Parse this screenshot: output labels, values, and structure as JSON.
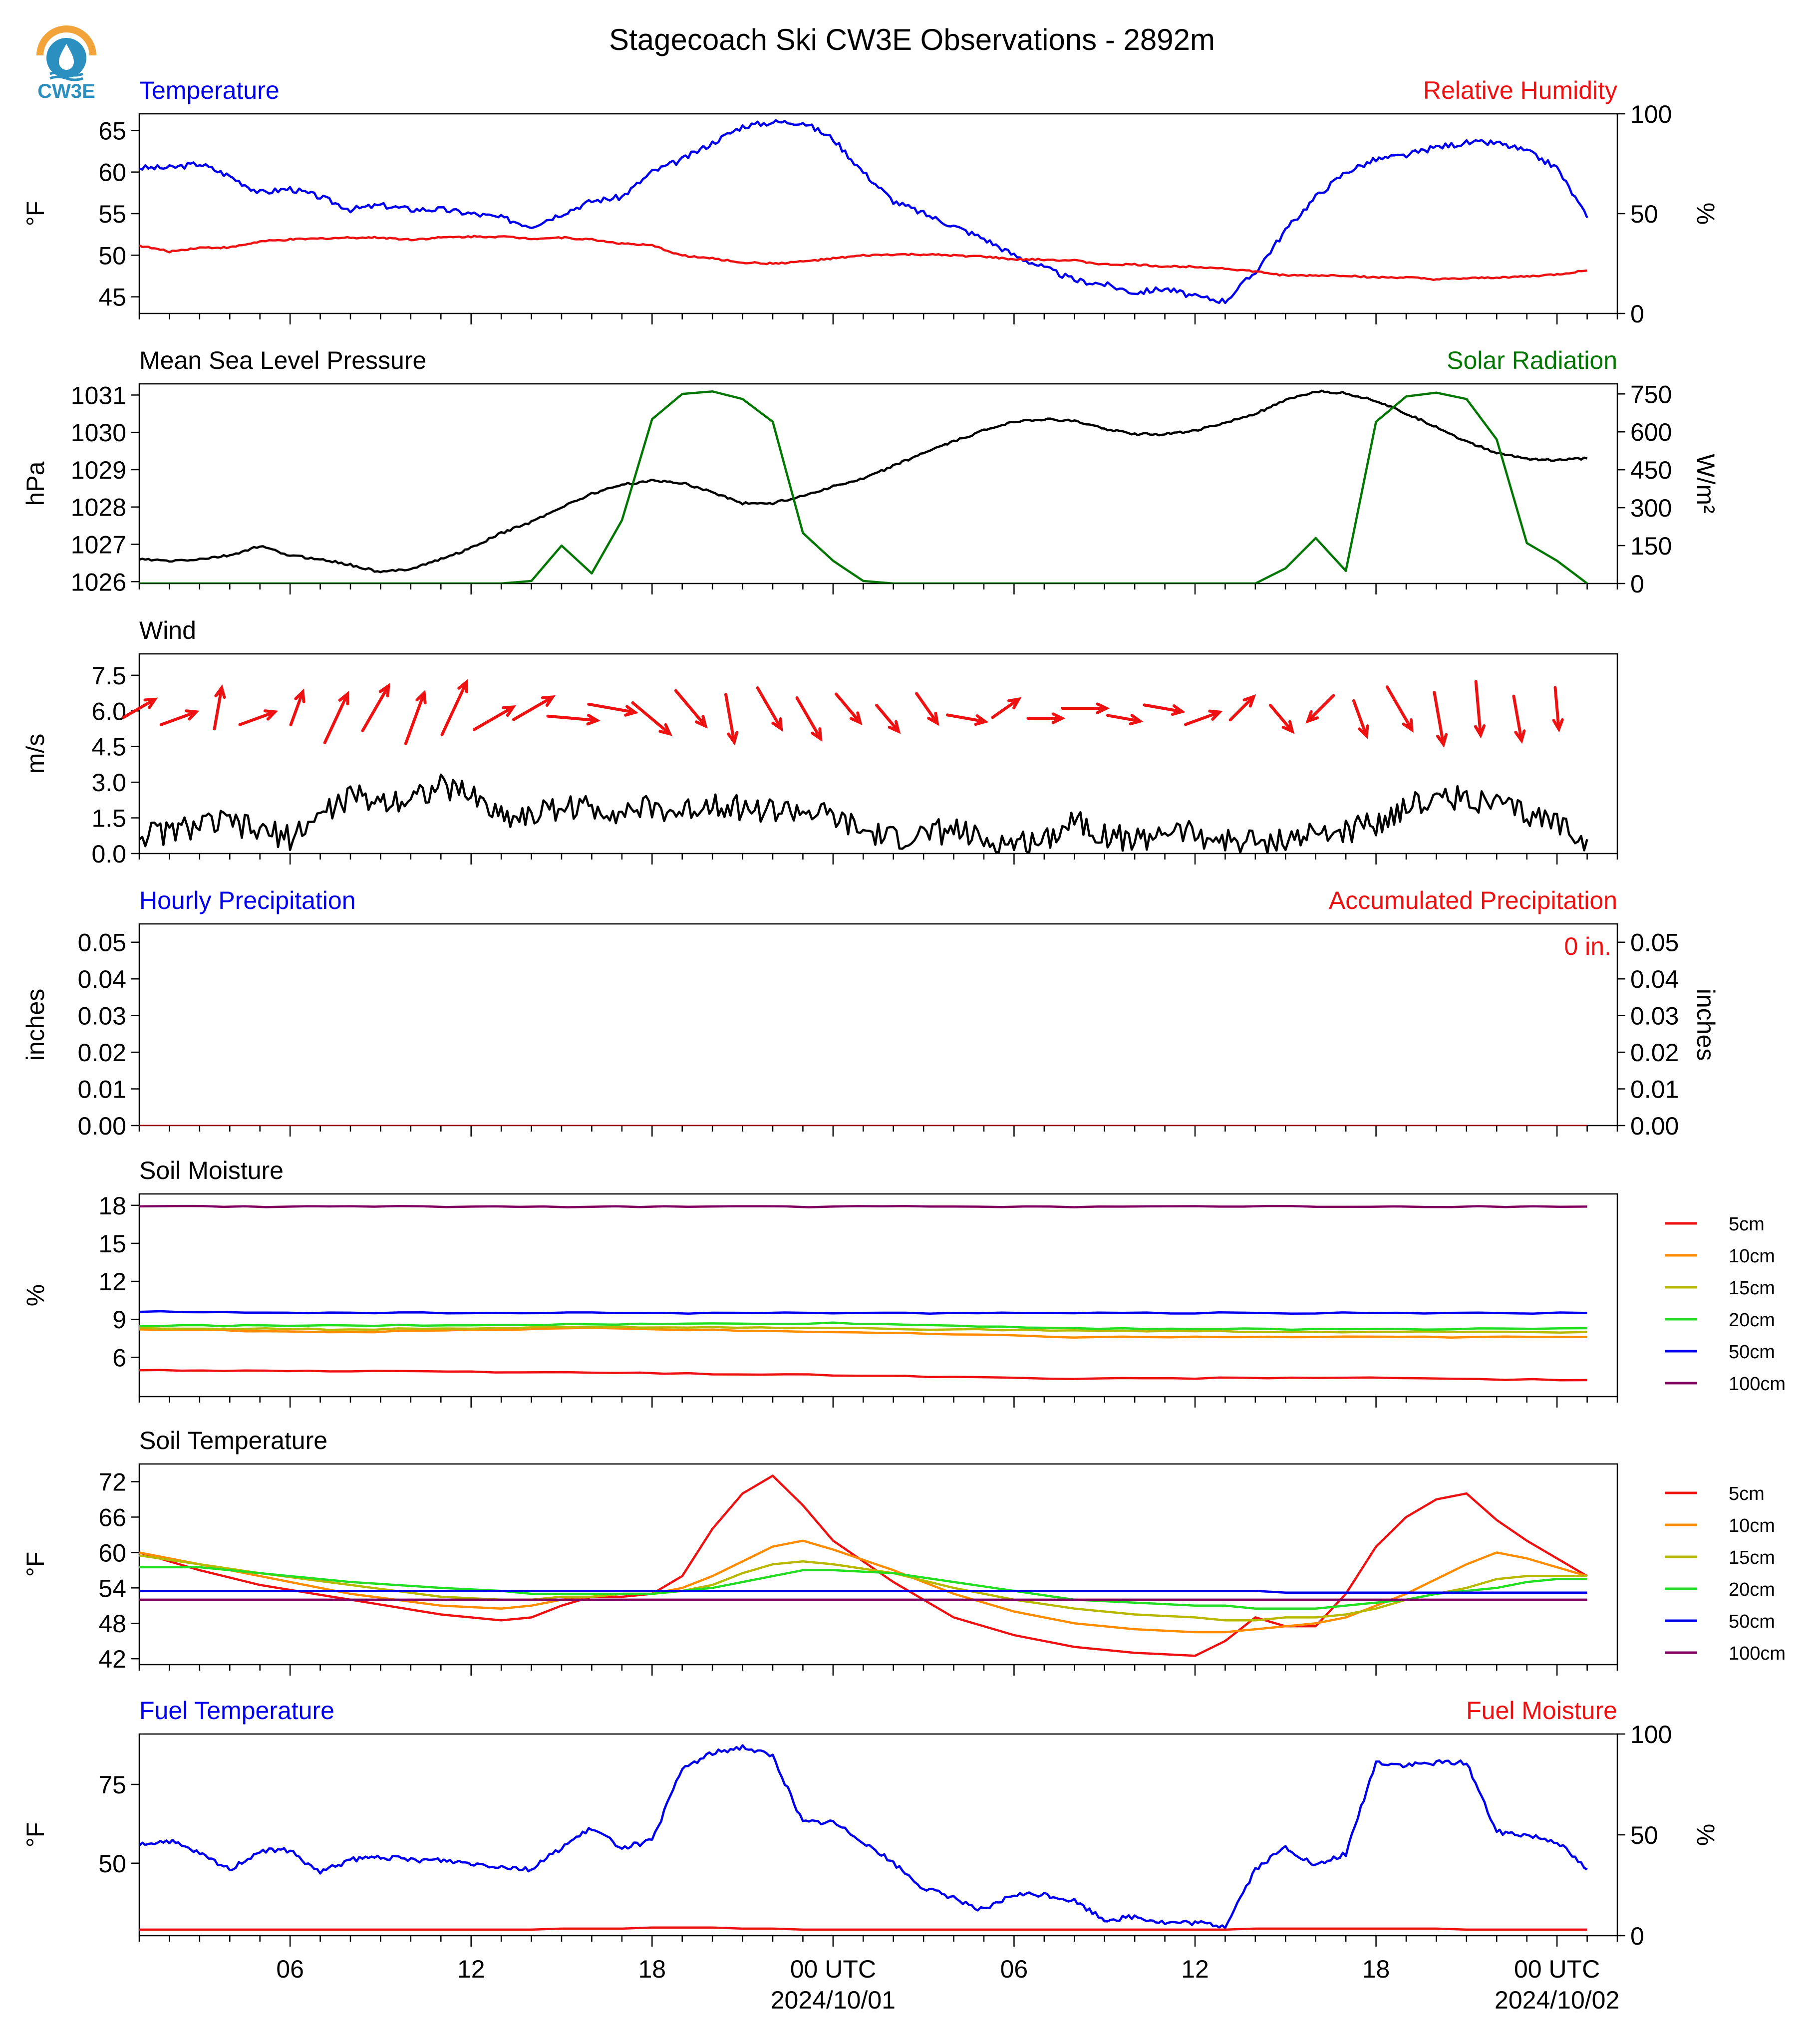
{
  "title": "Stagecoach Ski CW3E Observations - 2892m",
  "logo": {
    "text": "CW3E",
    "icon": "cw3e-drop-logo-icon",
    "colors": {
      "ring": "#f2a33a",
      "drop": "#2b8fbf",
      "text": "#2b8fbf"
    }
  },
  "x_axis": {
    "ticks": [
      "06",
      "12",
      "18",
      "00 UTC",
      "06",
      "12",
      "18",
      "00 UTC"
    ],
    "dates": [
      "2024/10/01",
      "2024/10/02"
    ]
  },
  "colors": {
    "blue": "#0000ee",
    "red": "#ee1111",
    "green": "#007700",
    "black": "#000000"
  },
  "chart_data": [
    {
      "id": "temperature",
      "type": "line",
      "left_title": "Temperature",
      "right_title": "Relative Humidity",
      "ylabel": "°F",
      "y2label": "%",
      "ylim": [
        43,
        67
      ],
      "y2lim": [
        0,
        100
      ],
      "yticks": [
        "45",
        "50",
        "55",
        "60",
        "65"
      ],
      "y2ticks": [
        "0",
        "50",
        "100"
      ],
      "x": [
        1,
        2,
        3,
        4,
        5,
        6,
        7,
        8,
        9,
        10,
        11,
        12,
        13,
        14,
        15,
        16,
        17,
        18,
        19,
        20,
        21,
        22,
        23,
        24,
        25,
        26,
        27,
        28,
        29,
        30,
        31,
        32,
        33,
        34,
        35,
        36,
        37,
        38,
        39,
        40,
        41,
        42,
        43,
        44,
        45,
        46,
        47,
        48,
        49
      ],
      "series": [
        {
          "name": "Temperature",
          "axis": "left",
          "color": "#0000ee",
          "values": [
            60.5,
            60.5,
            61,
            59.5,
            57.5,
            58,
            57,
            55.5,
            56,
            55.5,
            55.5,
            55,
            54.5,
            53.5,
            55,
            56.5,
            57,
            60,
            61.5,
            63.5,
            65.5,
            66,
            66,
            64,
            60,
            56.5,
            55,
            53.5,
            52,
            50,
            48.5,
            47,
            46.5,
            45.5,
            46,
            45,
            44.5,
            48,
            53,
            57,
            60,
            61.5,
            62,
            63,
            63.5,
            63.5,
            62.5,
            60.5,
            54.5
          ]
        },
        {
          "name": "Relative Humidity",
          "axis": "right",
          "color": "#ee1111",
          "values": [
            34,
            31,
            33,
            33,
            36,
            37,
            37.5,
            38,
            38,
            37,
            38,
            38.5,
            38.5,
            37.5,
            38,
            37,
            35,
            34,
            29,
            27.5,
            25.5,
            25,
            26,
            27.5,
            29,
            29.5,
            29.5,
            29,
            28.5,
            27,
            27,
            26.5,
            24.5,
            24.5,
            23.5,
            23.5,
            22.5,
            21,
            19,
            19,
            19,
            18,
            18,
            17,
            17.5,
            18,
            18.5,
            19.5,
            21.5
          ]
        }
      ]
    },
    {
      "id": "pressure",
      "type": "line",
      "left_title": "Mean Sea Level Pressure",
      "right_title": "Solar Radiation",
      "ylabel": "hPa",
      "y2label": "W/m²",
      "ylim": [
        1025.95,
        1031.3
      ],
      "y2lim": [
        0,
        790
      ],
      "yticks": [
        "1026",
        "1027",
        "1028",
        "1029",
        "1030",
        "1031"
      ],
      "y2ticks": [
        "0",
        "150",
        "300",
        "450",
        "600",
        "750"
      ],
      "x": [
        1,
        2,
        3,
        4,
        5,
        6,
        7,
        8,
        9,
        10,
        11,
        12,
        13,
        14,
        15,
        16,
        17,
        18,
        19,
        20,
        21,
        22,
        23,
        24,
        25,
        26,
        27,
        28,
        29,
        30,
        31,
        32,
        33,
        34,
        35,
        36,
        37,
        38,
        39,
        40,
        41,
        42,
        43,
        44,
        45,
        46,
        47,
        48,
        49
      ],
      "series": [
        {
          "name": "Mean Sea Level Pressure",
          "axis": "left",
          "color": "#000000",
          "values": [
            1026.6,
            1026.55,
            1026.6,
            1026.7,
            1026.95,
            1026.7,
            1026.6,
            1026.45,
            1026.25,
            1026.35,
            1026.6,
            1026.9,
            1027.3,
            1027.6,
            1028.0,
            1028.35,
            1028.6,
            1028.7,
            1028.65,
            1028.4,
            1028.1,
            1028.1,
            1028.3,
            1028.55,
            1028.75,
            1029.1,
            1029.45,
            1029.75,
            1030.05,
            1030.3,
            1030.35,
            1030.3,
            1030.1,
            1029.95,
            1029.95,
            1030.05,
            1030.25,
            1030.5,
            1030.85,
            1031.1,
            1031.05,
            1030.85,
            1030.5,
            1030.15,
            1029.75,
            1029.45,
            1029.3,
            1029.25,
            1029.3
          ]
        },
        {
          "name": "Solar Radiation",
          "axis": "right",
          "color": "#007700",
          "values": [
            0,
            0,
            0,
            0,
            0,
            0,
            0,
            0,
            0,
            0,
            0,
            0,
            0,
            10,
            150,
            40,
            250,
            650,
            750,
            760,
            730,
            640,
            200,
            90,
            10,
            0,
            0,
            0,
            0,
            0,
            0,
            0,
            0,
            0,
            0,
            0,
            0,
            0,
            60,
            180,
            50,
            640,
            740,
            755,
            730,
            570,
            160,
            90,
            0
          ]
        }
      ]
    },
    {
      "id": "wind",
      "type": "line",
      "left_title": "Wind",
      "ylabel": "m/s",
      "ylim": [
        0,
        8.4
      ],
      "yticks": [
        "0.0",
        "1.5",
        "3.0",
        "4.5",
        "6.0",
        "7.5"
      ],
      "x": [
        1,
        2,
        3,
        4,
        5,
        6,
        7,
        8,
        9,
        10,
        11,
        12,
        13,
        14,
        15,
        16,
        17,
        18,
        19,
        20,
        21,
        22,
        23,
        24,
        25,
        26,
        27,
        28,
        29,
        30,
        31,
        32,
        33,
        34,
        35,
        36,
        37,
        38,
        39,
        40,
        41,
        42,
        43,
        44,
        45,
        46,
        47,
        48,
        49
      ],
      "series": [
        {
          "name": "Wind Speed",
          "color": "#000000",
          "values": [
            0.8,
            0.9,
            1.2,
            1.3,
            0.9,
            0.7,
            1.6,
            2.4,
            2.2,
            2.4,
            2.8,
            2.5,
            1.6,
            1.6,
            2.0,
            1.9,
            1.8,
            1.9,
            1.7,
            2.2,
            1.9,
            1.8,
            1.8,
            1.5,
            0.9,
            0.6,
            0.8,
            1.0,
            0.5,
            0.4,
            0.6,
            1.5,
            0.8,
            0.5,
            1.0,
            0.8,
            0.5,
            0.5,
            0.6,
            0.8,
            0.9,
            1.3,
            2.0,
            2.3,
            2.4,
            2.0,
            1.6,
            1.3,
            0.6
          ]
        }
      ],
      "barbs_direction_from_deg": [
        240,
        250,
        190,
        250,
        200,
        205,
        210,
        200,
        205,
        240,
        240,
        275,
        280,
        310,
        320,
        350,
        330,
        330,
        320,
        320,
        325,
        280,
        235,
        270,
        270,
        280,
        280,
        250,
        225,
        320,
        45,
        340,
        330,
        350,
        355,
        350,
        355
      ]
    },
    {
      "id": "precipitation",
      "type": "line",
      "left_title": "Hourly Precipitation",
      "right_title": "Accumulated Precipitation",
      "ylabel": "inches",
      "y2label": "inches",
      "ylim": [
        0,
        0.055
      ],
      "y2lim": [
        0,
        0.055
      ],
      "yticks": [
        "0.00",
        "0.01",
        "0.02",
        "0.03",
        "0.04",
        "0.05"
      ],
      "y2ticks": [
        "0.00",
        "0.01",
        "0.02",
        "0.03",
        "0.04",
        "0.05"
      ],
      "total_label": "0 in.",
      "x": [
        1,
        49
      ],
      "series": [
        {
          "name": "Hourly Precipitation",
          "axis": "left",
          "color": "#0000ee",
          "values": [
            0,
            0
          ]
        },
        {
          "name": "Accumulated Precipitation",
          "axis": "right",
          "color": "#ee1111",
          "values": [
            0,
            0
          ]
        }
      ]
    },
    {
      "id": "soil_moisture",
      "type": "line",
      "left_title": "Soil Moisture",
      "ylabel": "%",
      "ylim": [
        2.9,
        18.9
      ],
      "yticks": [
        "6",
        "9",
        "12",
        "15",
        "18"
      ],
      "x": [
        1,
        8,
        16,
        24,
        32,
        40,
        49
      ],
      "series": [
        {
          "name": "5cm",
          "color": "#ee1111",
          "values": [
            5.0,
            4.9,
            4.8,
            4.6,
            4.3,
            4.4,
            4.2
          ]
        },
        {
          "name": "10cm",
          "color": "#ff8c00",
          "values": [
            8.2,
            8.0,
            8.3,
            8.0,
            7.6,
            7.6,
            7.6
          ]
        },
        {
          "name": "15cm",
          "color": "#b8b800",
          "values": [
            8.3,
            8.2,
            8.4,
            8.3,
            8.1,
            8.0,
            8.0
          ]
        },
        {
          "name": "20cm",
          "color": "#22dd22",
          "values": [
            8.5,
            8.5,
            8.6,
            8.7,
            8.3,
            8.2,
            8.3
          ]
        },
        {
          "name": "50cm",
          "color": "#0000ee",
          "values": [
            9.6,
            9.5,
            9.5,
            9.5,
            9.5,
            9.5,
            9.5
          ]
        },
        {
          "name": "100cm",
          "color": "#800060",
          "values": [
            17.9,
            17.9,
            17.9,
            17.9,
            17.9,
            17.9,
            17.9
          ]
        }
      ]
    },
    {
      "id": "soil_temperature",
      "type": "line",
      "left_title": "Soil Temperature",
      "ylabel": "°F",
      "ylim": [
        41,
        75
      ],
      "yticks": [
        "42",
        "48",
        "54",
        "60",
        "66",
        "72"
      ],
      "x": [
        1,
        3,
        5,
        8,
        11,
        13,
        14,
        15,
        16,
        17,
        18,
        19,
        20,
        21,
        22,
        23,
        24,
        26,
        28,
        30,
        32,
        34,
        36,
        37,
        38,
        39,
        40,
        41,
        42,
        43,
        44,
        45,
        46,
        47,
        48,
        49
      ],
      "series": [
        {
          "name": "5cm",
          "color": "#ee1111",
          "values": [
            60,
            57,
            54.5,
            52,
            49.5,
            48.5,
            49,
            51,
            52.5,
            52.5,
            53,
            56,
            64,
            70,
            73,
            68,
            62,
            55,
            49,
            46,
            44,
            43,
            42.5,
            45,
            49,
            47.5,
            47.5,
            53,
            61,
            66,
            69,
            70,
            65.5,
            62,
            59,
            56
          ]
        },
        {
          "name": "10cm",
          "color": "#ff8c00",
          "values": [
            60,
            58,
            56,
            53,
            51,
            50.5,
            51,
            52,
            52.5,
            53,
            53,
            54,
            56,
            58.5,
            61,
            62,
            60.5,
            57,
            53,
            50,
            48,
            47,
            46.5,
            46.5,
            47,
            47.5,
            48,
            49,
            51,
            53,
            55.5,
            58,
            60,
            59,
            57.5,
            56
          ]
        },
        {
          "name": "15cm",
          "color": "#b8b800",
          "values": [
            59.5,
            58,
            56.5,
            54.5,
            52.5,
            52,
            52,
            52.5,
            52.5,
            53,
            53,
            53.5,
            54.5,
            56.5,
            58,
            58.5,
            58,
            56.5,
            54,
            52,
            50.5,
            49.5,
            49,
            48.5,
            48.5,
            49,
            49,
            49.5,
            50.5,
            52,
            53,
            54,
            55.5,
            56,
            56,
            56
          ]
        },
        {
          "name": "20cm",
          "color": "#22dd22",
          "values": [
            57.5,
            57.5,
            56.5,
            55,
            54,
            53.5,
            53,
            53,
            53,
            53,
            53,
            53.5,
            54,
            55,
            56,
            57,
            57,
            56.5,
            55,
            53.5,
            52,
            51.5,
            51,
            51,
            50.5,
            50.5,
            50.5,
            51,
            51.5,
            52,
            53,
            53.5,
            54,
            55,
            55.5,
            55.5
          ]
        },
        {
          "name": "50cm",
          "color": "#0000ee",
          "values": [
            53.5,
            53.5,
            53.5,
            53.5,
            53.5,
            53.5,
            53.5,
            53.5,
            53.5,
            53.5,
            53.5,
            53.5,
            53.5,
            53.5,
            53.5,
            53.5,
            53.5,
            53.5,
            53.5,
            53.5,
            53.5,
            53.5,
            53.5,
            53.5,
            53.5,
            53.2,
            53.2,
            53.2,
            53.2,
            53.2,
            53.2,
            53.2,
            53.2,
            53.2,
            53.2,
            53.2
          ]
        },
        {
          "name": "100cm",
          "color": "#800060",
          "values": [
            52,
            52,
            52,
            52,
            52,
            52,
            52,
            52,
            52,
            52,
            52,
            52,
            52,
            52,
            52,
            52,
            52,
            52,
            52,
            52,
            52,
            52,
            52,
            52,
            52,
            52,
            52,
            52,
            52,
            52,
            52,
            52,
            52,
            52,
            52,
            52
          ]
        }
      ]
    },
    {
      "id": "fuel",
      "type": "line",
      "left_title": "Fuel Temperature",
      "right_title": "Fuel Moisture",
      "ylabel": "°F",
      "y2label": "%",
      "ylim": [
        27,
        91
      ],
      "y2lim": [
        0,
        100
      ],
      "yticks": [
        "50",
        "75"
      ],
      "y2ticks": [
        "0",
        "50",
        "100"
      ],
      "x": [
        1,
        2,
        3,
        4,
        5,
        6,
        7,
        8,
        9,
        10,
        11,
        12,
        13,
        14,
        15,
        16,
        17,
        18,
        19,
        20,
        21,
        22,
        23,
        24,
        25,
        26,
        27,
        28,
        29,
        30,
        31,
        32,
        33,
        34,
        35,
        36,
        37,
        38,
        39,
        40,
        41,
        42,
        43,
        44,
        45,
        46,
        47,
        48,
        49
      ],
      "series": [
        {
          "name": "Fuel Temperature",
          "axis": "left",
          "color": "#0000ee",
          "values": [
            56,
            57,
            53,
            48,
            54,
            54,
            47,
            51,
            52,
            51,
            51,
            50,
            49,
            48,
            55,
            61,
            55,
            57,
            80,
            85,
            87,
            84,
            63,
            63,
            57,
            50,
            42,
            39,
            35,
            40,
            40,
            38,
            32,
            33,
            31,
            31,
            30,
            48,
            55,
            49,
            53,
            82,
            81,
            82,
            82,
            60,
            59,
            57,
            48
          ]
        },
        {
          "name": "Fuel Moisture",
          "axis": "right",
          "color": "#ee1111",
          "values": [
            3,
            3,
            3,
            3,
            3,
            3,
            3,
            3,
            3,
            3,
            3,
            3,
            3,
            3,
            3.5,
            3.5,
            3.5,
            4,
            4,
            4,
            3.5,
            3.5,
            3,
            3,
            3,
            3,
            3,
            3,
            3,
            3,
            3,
            3,
            3,
            3,
            3,
            3,
            3,
            3.5,
            3.5,
            3.5,
            3.5,
            3.5,
            3.5,
            3.5,
            3,
            3,
            3,
            3,
            3
          ]
        }
      ]
    }
  ]
}
